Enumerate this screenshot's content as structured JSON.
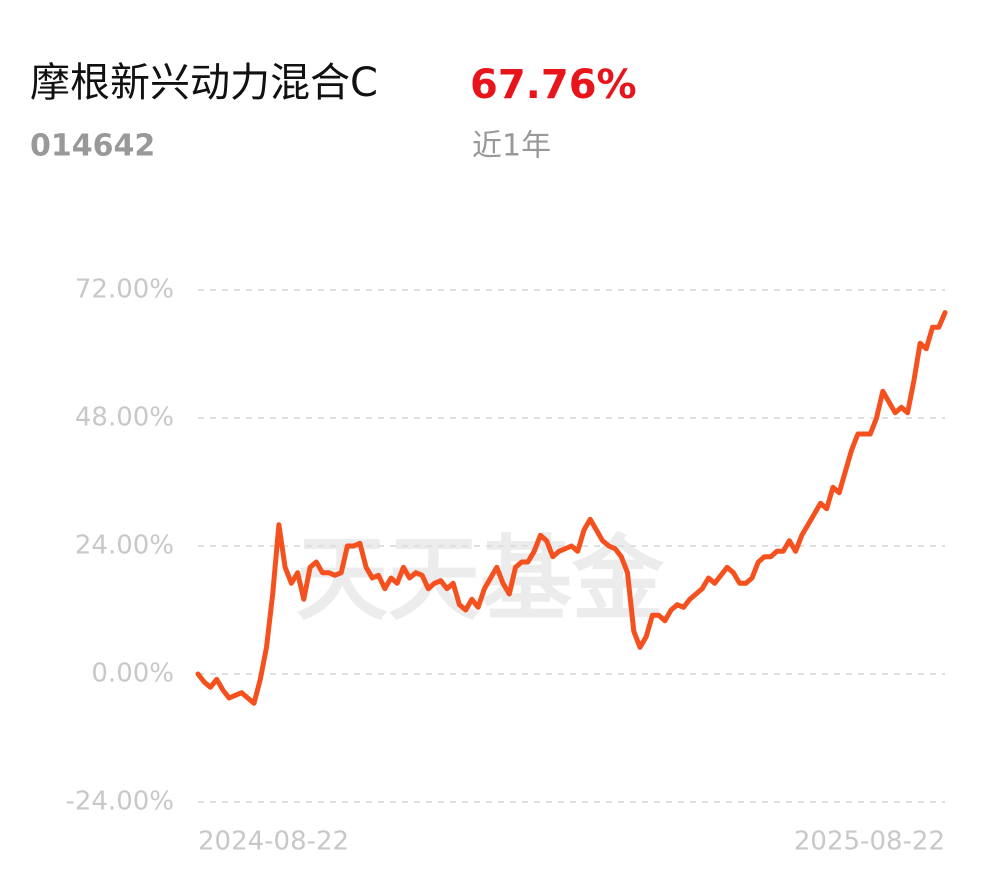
{
  "header": {
    "title": "摩根新兴动力混合C",
    "return": "67.76%",
    "code": "014642",
    "period": "近1年"
  },
  "chart_data": {
    "type": "line",
    "watermark": "天天基金",
    "categories": [
      "2024-08-22",
      null,
      null,
      null,
      null,
      null,
      null,
      null,
      null,
      null,
      null,
      null,
      null,
      null,
      null,
      null,
      null,
      null,
      null,
      null,
      null,
      null,
      null,
      null,
      null,
      null,
      null,
      null,
      null,
      null,
      null,
      null,
      null,
      null,
      null,
      null,
      null,
      null,
      null,
      null,
      null,
      null,
      null,
      null,
      null,
      null,
      null,
      null,
      null,
      null,
      null,
      null,
      null,
      null,
      null,
      null,
      null,
      null,
      null,
      null,
      null,
      null,
      null,
      null,
      null,
      null,
      null,
      null,
      null,
      null,
      null,
      null,
      null,
      null,
      null,
      null,
      null,
      null,
      null,
      null,
      null,
      null,
      null,
      null,
      null,
      null,
      null,
      null,
      null,
      null,
      null,
      null,
      null,
      null,
      null,
      null,
      null,
      null,
      null,
      null,
      null,
      null,
      null,
      null,
      null,
      null,
      null,
      null,
      null,
      null,
      null,
      null,
      null,
      null,
      null,
      null,
      null,
      null,
      null,
      null,
      "2025-08-22"
    ],
    "series": [
      {
        "color": "#f5511e",
        "values": [
          0,
          -1.5,
          -2.5,
          -1,
          -3,
          -4.5,
          -4,
          -3.5,
          -4.5,
          -5.5,
          -1,
          5,
          15,
          28,
          20,
          17,
          19,
          14,
          20,
          21,
          19,
          19,
          18.5,
          19,
          24,
          24,
          24.5,
          20,
          18,
          18.5,
          16,
          18,
          17,
          20,
          18,
          19,
          18.5,
          16,
          17,
          17.5,
          16,
          17,
          13,
          12,
          14,
          12.5,
          16,
          18,
          20,
          17,
          15,
          20,
          21,
          21,
          23,
          26,
          25,
          22,
          23,
          23.5,
          24,
          23,
          27,
          29,
          27,
          25,
          24,
          23.5,
          22,
          19,
          8,
          5,
          7,
          11,
          11,
          10,
          12,
          13,
          12.5,
          14,
          15,
          16,
          18,
          17,
          18.5,
          20,
          19,
          17,
          17,
          18,
          21,
          22,
          22,
          23,
          23,
          25,
          23,
          26,
          28,
          30,
          32,
          31,
          35,
          34,
          38,
          42,
          45,
          45,
          45,
          48,
          53,
          51,
          49,
          50,
          49,
          55,
          62,
          61,
          65,
          65,
          67.76
        ]
      }
    ],
    "ylim": [
      -24,
      72
    ],
    "yticks": [
      {
        "value": 72,
        "label": "72.00%"
      },
      {
        "value": 48,
        "label": "48.00%"
      },
      {
        "value": 24,
        "label": "24.00%"
      },
      {
        "value": 0,
        "label": "0.00%"
      },
      {
        "value": -24,
        "label": "-24.00%"
      }
    ],
    "grid": true
  }
}
